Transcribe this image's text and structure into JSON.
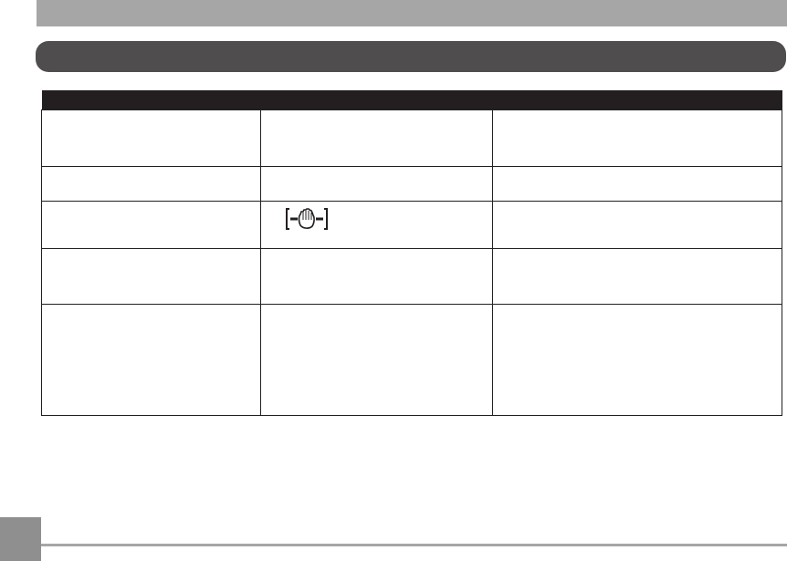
{
  "colors": {
    "header_bar": "#a7a6a7",
    "section_pill": "#4f4d4e",
    "table_header": "#231f20",
    "page_tab": "#908f90"
  },
  "table": {
    "columns": [
      "",
      "",
      ""
    ],
    "rows": [
      [
        "",
        "",
        ""
      ],
      [
        "",
        "",
        ""
      ],
      [
        "",
        "",
        ""
      ],
      [
        "",
        "",
        ""
      ],
      [
        "",
        "",
        ""
      ]
    ]
  },
  "icons": {
    "row3_col2": "image-stabilization-hand-icon"
  }
}
